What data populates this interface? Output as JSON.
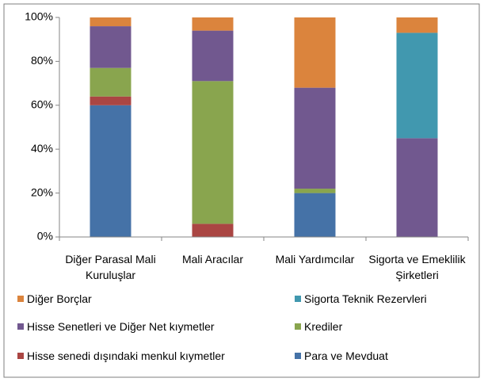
{
  "chart_data": {
    "type": "stacked_bar",
    "categories": [
      "Diğer Parasal Mali Kuruluşlar",
      "Mali Aracılar",
      "Mali Yardımcılar",
      "Sigorta ve Emeklilik Şirketleri"
    ],
    "series": [
      {
        "name": "Para ve Mevduat",
        "color": "#4572a7",
        "values": [
          60,
          0,
          20,
          0
        ]
      },
      {
        "name": "Hisse senedi dışındaki menkul kıymetler",
        "color": "#aa4643",
        "values": [
          4,
          6,
          0,
          0
        ]
      },
      {
        "name": "Krediler",
        "color": "#89a54e",
        "values": [
          13,
          65,
          2,
          0
        ]
      },
      {
        "name": "Hisse Senetleri ve Diğer Net kıymetler",
        "color": "#71588f",
        "values": [
          19,
          23,
          46,
          45
        ]
      },
      {
        "name": "Sigorta Teknik Rezervleri",
        "color": "#4198af",
        "values": [
          0,
          0,
          0,
          48
        ]
      },
      {
        "name": "Diğer Borçlar",
        "color": "#db843d",
        "values": [
          4,
          6,
          32,
          7
        ]
      }
    ],
    "ylim": [
      0,
      100
    ],
    "yticks": [
      {
        "value": 0,
        "label": "0%"
      },
      {
        "value": 20,
        "label": "20%"
      },
      {
        "value": 40,
        "label": "40%"
      },
      {
        "value": 60,
        "label": "60%"
      },
      {
        "value": 80,
        "label": "80%"
      },
      {
        "value": 100,
        "label": "100%"
      }
    ],
    "grid": false
  }
}
